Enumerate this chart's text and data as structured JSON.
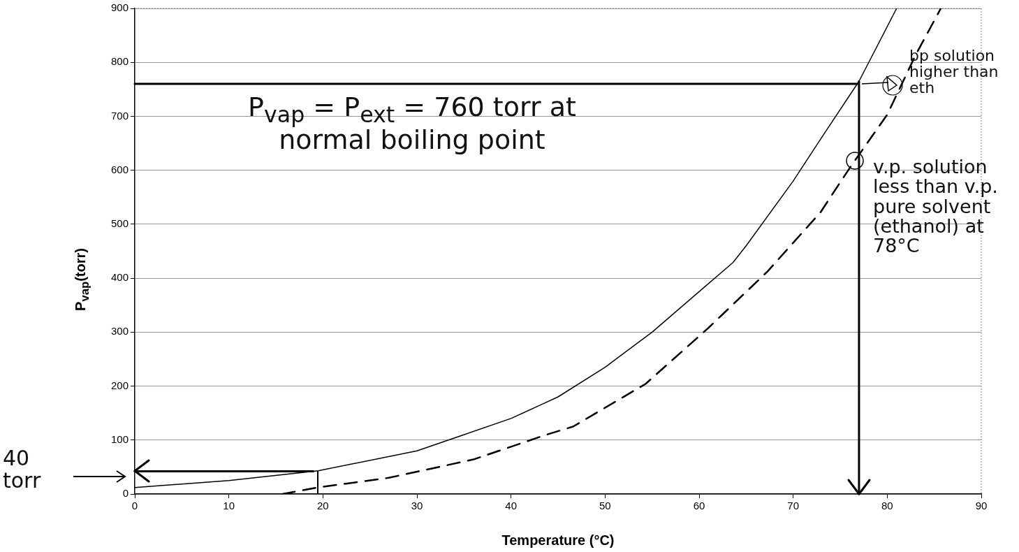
{
  "chart_data": {
    "type": "line",
    "xlabel": "Temperature (°C)",
    "ylabel": "P$_{vap}$(torr)",
    "xlim": [
      0,
      90
    ],
    "xticks": [
      0,
      10,
      20,
      30,
      40,
      50,
      60,
      70,
      80,
      90
    ],
    "ylim": [
      0,
      900
    ],
    "yticks": [
      0,
      100,
      200,
      300,
      400,
      500,
      600,
      700,
      800,
      900
    ],
    "grid": "y",
    "legend": false,
    "marker": "none",
    "series": [
      {
        "color": "#000000",
        "line_style": "solid",
        "x": [
          0,
          10,
          19.5,
          30,
          34,
          40,
          45,
          50,
          55,
          60,
          63.6,
          65,
          70,
          73,
          77,
          81
        ],
        "values": [
          12,
          25,
          43,
          80,
          104,
          140,
          180,
          235,
          300,
          375,
          429,
          460,
          580,
          660,
          765,
          900
        ]
      },
      {
        "color": "#000000",
        "line_style": "dashed",
        "x": [
          15.7,
          19.4,
          27,
          36,
          43.6,
          46.6,
          54.3,
          61,
          67.3,
          72.9,
          76,
          80,
          83,
          85.7
        ],
        "values": [
          0,
          12,
          30,
          64,
          109,
          125,
          204,
          308,
          413,
          522,
          604,
          703,
          813,
          900
        ]
      }
    ],
    "ref_lines": [
      {
        "axis": "y",
        "value": 760,
        "color": "#000000"
      },
      {
        "axis": "x",
        "value": 77,
        "color": "#000000"
      },
      {
        "axis": "y",
        "value": 42,
        "color": "#000000"
      }
    ],
    "annotations": [
      "P$_{vap}$ = P$_{ext}$ = 760 torr at normal boiling point",
      "40 torr",
      "bp solution higher than eth",
      "v.p. solution less than v.p. pure solvent (ethanol) at 78°C"
    ]
  }
}
